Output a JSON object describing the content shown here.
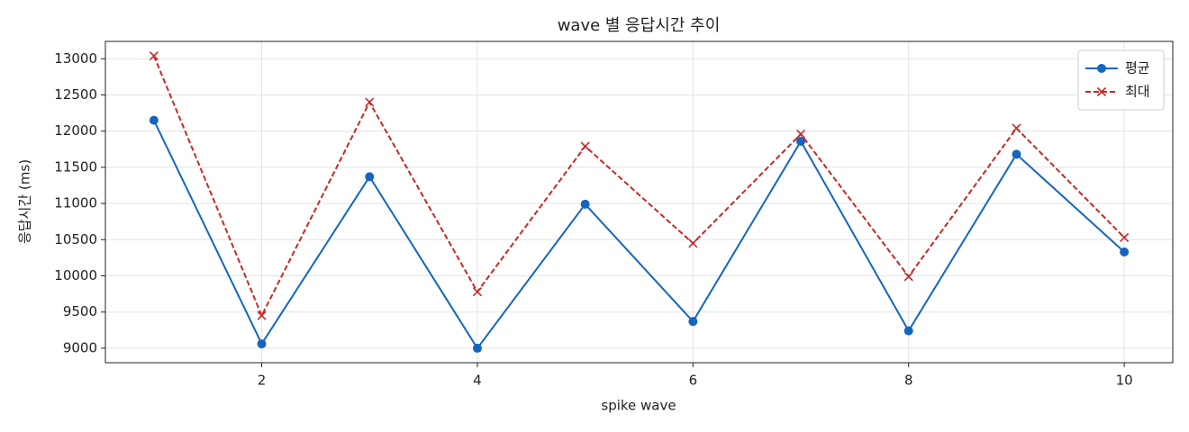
{
  "chart_data": {
    "type": "line",
    "title": "wave 별 응답시간 추이",
    "xlabel": "spike wave",
    "ylabel": "응답시간 (ms)",
    "x": [
      1,
      2,
      3,
      4,
      5,
      6,
      7,
      8,
      9,
      10
    ],
    "series": [
      {
        "name": "평균",
        "color": "#1565c0",
        "marker": "o",
        "linestyle": "solid",
        "values": [
          12150,
          9060,
          11370,
          9000,
          10990,
          9370,
          11860,
          9240,
          11680,
          10330
        ]
      },
      {
        "name": "최대",
        "color": "#c62828",
        "marker": "x",
        "linestyle": "dashed",
        "values": [
          13040,
          9450,
          12400,
          9780,
          11790,
          10450,
          11960,
          9990,
          12040,
          10530
        ]
      }
    ],
    "xlim": [
      0.55,
      10.45
    ],
    "ylim": [
      8800,
      13240
    ],
    "xticks": [
      2,
      4,
      6,
      8,
      10
    ],
    "yticks": [
      9000,
      9500,
      10000,
      10500,
      11000,
      11500,
      12000,
      12500,
      13000
    ],
    "grid": true,
    "legend": "upper right"
  }
}
